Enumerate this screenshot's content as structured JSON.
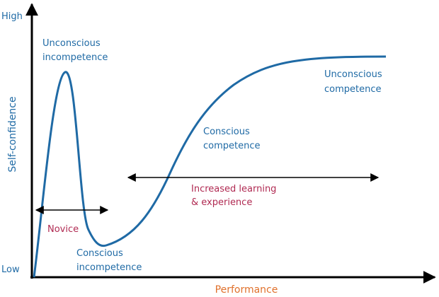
{
  "axes": {
    "y_high": "High",
    "y_low": "Low",
    "y_title": "Self-confidence",
    "x_title": "Performance"
  },
  "stages": [
    {
      "lines": [
        "Unconscious",
        "incompetence"
      ]
    },
    {
      "lines": [
        "Conscious",
        "incompetence"
      ]
    },
    {
      "lines": [
        "Conscious",
        "competence"
      ]
    },
    {
      "lines": [
        "Unconscious",
        "competence"
      ]
    }
  ],
  "spans": [
    {
      "lines": [
        "Novice"
      ]
    },
    {
      "lines": [
        "Increased learning",
        "& experience"
      ]
    }
  ]
}
